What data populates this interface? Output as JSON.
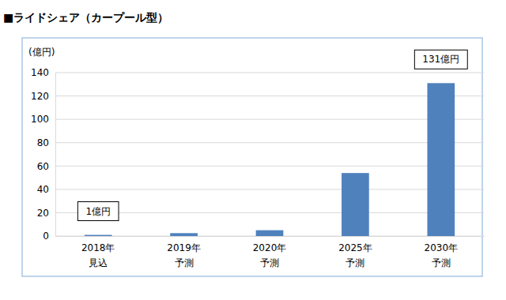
{
  "chart_data": {
    "type": "bar",
    "title": "■ライドシェア（カープール型）",
    "y_label": "(億円)",
    "categories": [
      "2018年\n見込",
      "2019年\n予測",
      "2020年\n予測",
      "2025年\n予測",
      "2030年\n予測"
    ],
    "values": [
      1,
      2.5,
      5,
      54,
      131
    ],
    "value_labels": [
      "1億円",
      null,
      null,
      null,
      "131億円"
    ],
    "data_labels": true,
    "color": "#4f81bd",
    "ylim": [
      0,
      140
    ],
    "yticks": [
      0,
      20,
      40,
      60,
      80,
      100,
      120,
      140
    ],
    "grid": true
  }
}
